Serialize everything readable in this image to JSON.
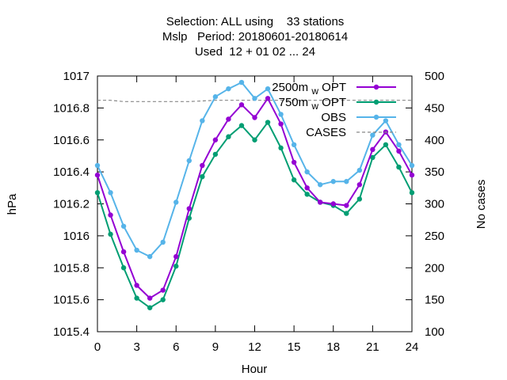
{
  "chart_data": {
    "type": "line",
    "title_lines": [
      "Selection: ALL using    33 stations",
      "Mslp   Period: 20180601-20180614",
      "Used  12 + 01 02 ... 24"
    ],
    "xlabel": "Hour",
    "ylabel": "hPa",
    "y2label": "No cases",
    "xlim": [
      0,
      24
    ],
    "ylim": [
      1015.4,
      1017
    ],
    "y2lim": [
      100,
      500
    ],
    "xticks": [
      0,
      3,
      6,
      9,
      12,
      15,
      18,
      21,
      24
    ],
    "yticks": [
      1015.4,
      1015.6,
      1015.8,
      1016,
      1016.2,
      1016.4,
      1016.6,
      1016.8,
      1017
    ],
    "ytick_labels": [
      "1015.4",
      "1015.6",
      "1015.8",
      "1016",
      "1016.2",
      "1016.4",
      "1016.6",
      "1016.8",
      "1017"
    ],
    "y2ticks": [
      100,
      150,
      200,
      250,
      300,
      350,
      400,
      450,
      500
    ],
    "legend_position": "top-right",
    "grid": false,
    "x": [
      0,
      1,
      2,
      3,
      4,
      5,
      6,
      7,
      8,
      9,
      10,
      11,
      12,
      13,
      14,
      15,
      16,
      17,
      18,
      19,
      20,
      21,
      22,
      23,
      24
    ],
    "series": [
      {
        "name": "2500m  OPT",
        "name_sub": "w",
        "color": "#9400d3",
        "axis": "y",
        "values": [
          1016.38,
          1016.13,
          1015.9,
          1015.69,
          1015.61,
          1015.66,
          1015.87,
          1016.17,
          1016.44,
          1016.6,
          1016.73,
          1016.82,
          1016.74,
          1016.86,
          1016.7,
          1016.46,
          1016.3,
          1016.21,
          1016.2,
          1016.19,
          1016.32,
          1016.54,
          1016.65,
          1016.53,
          1016.38
        ]
      },
      {
        "name": "750m  OPT",
        "name_sub": "w",
        "color": "#009e73",
        "axis": "y",
        "values": [
          1016.27,
          1016.01,
          1015.8,
          1015.61,
          1015.55,
          1015.6,
          1015.81,
          1016.11,
          1016.37,
          1016.51,
          1016.62,
          1016.69,
          1016.6,
          1016.71,
          1016.55,
          1016.35,
          1016.26,
          1016.21,
          1016.19,
          1016.14,
          1016.23,
          1016.49,
          1016.57,
          1016.43,
          1016.27
        ]
      },
      {
        "name": "OBS",
        "color": "#56b4e9",
        "axis": "y",
        "values": [
          1016.44,
          1016.27,
          1016.06,
          1015.91,
          1015.87,
          1015.96,
          1016.21,
          1016.47,
          1016.72,
          1016.87,
          1016.92,
          1016.96,
          1016.86,
          1016.92,
          1016.76,
          1016.57,
          1016.4,
          1016.32,
          1016.34,
          1016.34,
          1016.41,
          1016.63,
          1016.72,
          1016.57,
          1016.44
        ]
      },
      {
        "name": "CASES",
        "color": "#888888",
        "axis": "y2",
        "dashed": true,
        "values": [
          462,
          462,
          460,
          460,
          460,
          460,
          460,
          460,
          461,
          462,
          462,
          462,
          462,
          462,
          462,
          462,
          462,
          462,
          462,
          462,
          462,
          462,
          462,
          462,
          462
        ]
      }
    ]
  }
}
